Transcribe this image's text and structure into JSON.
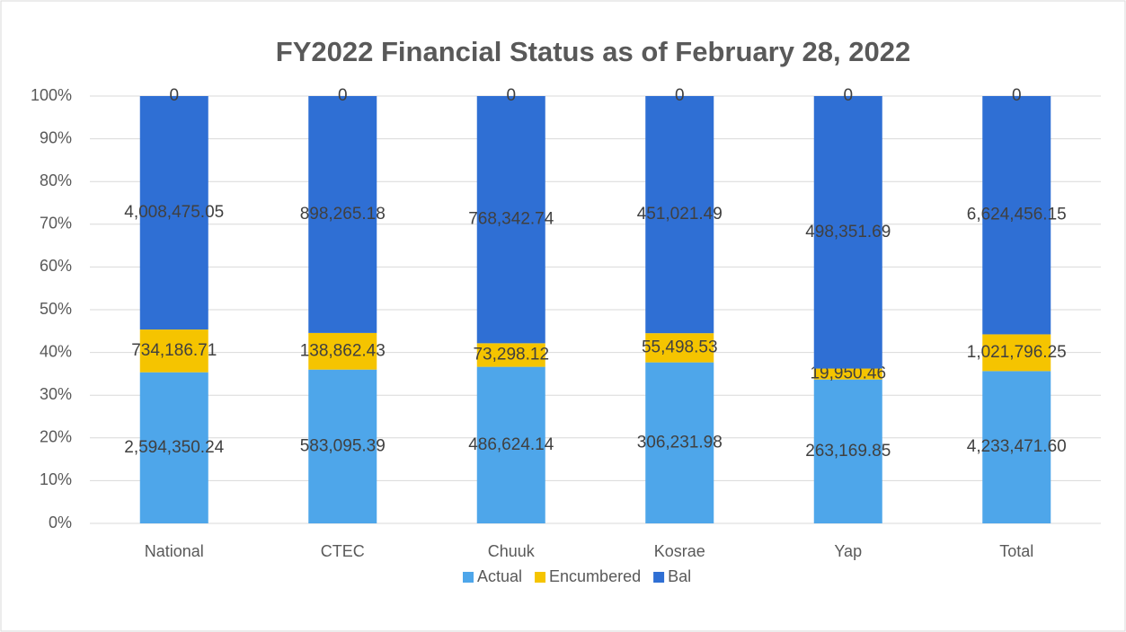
{
  "chart_data": {
    "type": "bar",
    "stacking": "percent",
    "title": "FY2022 Financial Status as of February 28, 2022",
    "categories": [
      "National",
      "CTEC",
      "Chuuk",
      "Kosrae",
      "Yap",
      "Total"
    ],
    "series": [
      {
        "name": "Actual",
        "color": "#4ea6ea",
        "values": [
          2594350.24,
          583095.39,
          486624.14,
          306231.98,
          263169.85,
          4233471.6
        ],
        "value_labels": [
          "2,594,350.24",
          "583,095.39",
          "486,624.14",
          "306,231.98",
          "263,169.85",
          "4,233,471.60"
        ]
      },
      {
        "name": "Encumbered",
        "color": "#f5c400",
        "values": [
          734186.71,
          138862.43,
          73298.12,
          55498.53,
          19950.46,
          1021796.25
        ],
        "value_labels": [
          "734,186.71",
          "138,862.43",
          "73,298.12",
          "55,498.53",
          "19,950.46",
          "1,021,796.25"
        ]
      },
      {
        "name": "Bal",
        "color": "#2f6fd4",
        "values": [
          4008475.05,
          898265.18,
          768342.74,
          451021.49,
          498351.69,
          6624456.15
        ],
        "value_labels": [
          "4,008,475.05",
          "898,265.18",
          "768,342.74",
          "451,021.49",
          "498,351.69",
          "6,624,456.15"
        ]
      },
      {
        "color": "#4ea6ea",
        "values": [
          0,
          0,
          0,
          0,
          0,
          0
        ]
      }
    ],
    "ylim": [
      0,
      100
    ],
    "yticks": [
      {
        "value": 0,
        "label": "0%"
      },
      {
        "value": 10,
        "label": "10%"
      },
      {
        "value": 20,
        "label": "20%"
      },
      {
        "value": 30,
        "label": "30%"
      },
      {
        "value": 40,
        "label": "40%"
      },
      {
        "value": 50,
        "label": "50%"
      },
      {
        "value": 60,
        "label": "60%"
      },
      {
        "value": 70,
        "label": "70%"
      },
      {
        "value": 80,
        "label": "80%"
      },
      {
        "value": 90,
        "label": "90%"
      },
      {
        "value": 100,
        "label": "100%"
      }
    ],
    "grid": true,
    "legend": "bottom"
  }
}
